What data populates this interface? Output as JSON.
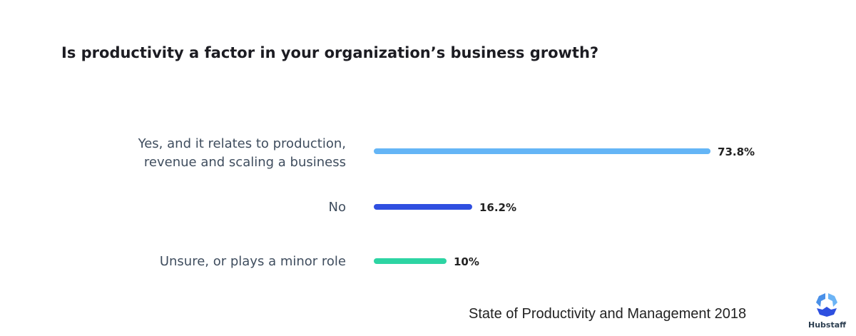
{
  "chart_data": {
    "type": "bar",
    "orientation": "horizontal",
    "title": "Is productivity a factor in your organization’s business growth?",
    "categories": [
      [
        "Yes, and it relates to production,",
        "revenue and scaling a business"
      ],
      [
        "No"
      ],
      [
        "Unsure, or plays a minor role"
      ]
    ],
    "values": [
      73.8,
      16.2,
      10
    ],
    "value_labels": [
      "73.8%",
      "16.2%",
      "10%"
    ],
    "colors": [
      "#64b5f6",
      "#2f4fe0",
      "#2dd4a3"
    ],
    "unit": "%",
    "grid": false
  },
  "source": "State of Productivity and Management 2018",
  "logo": {
    "text": "Hubstaff",
    "colors": [
      "#4a90e8",
      "#6cb4f5",
      "#2e50e0"
    ]
  }
}
